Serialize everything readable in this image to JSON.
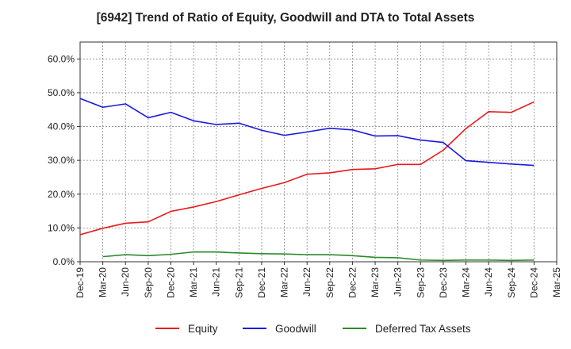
{
  "chart_data": {
    "type": "line",
    "title": "[6942]  Trend of Ratio of Equity, Goodwill and DTA to Total Assets",
    "xlabel": "",
    "ylabel": "",
    "ylim": [
      0,
      65
    ],
    "y_ticks": [
      0,
      10,
      20,
      30,
      40,
      50,
      60
    ],
    "y_tick_labels": [
      "0.0%",
      "10.0%",
      "20.0%",
      "30.0%",
      "40.0%",
      "50.0%",
      "60.0%"
    ],
    "x_tick_labels": [
      "Dec-19",
      "Mar-20",
      "Jun-20",
      "Sep-20",
      "Dec-20",
      "Mar-21",
      "Jun-21",
      "Sep-21",
      "Dec-21",
      "Mar-22",
      "Jun-22",
      "Sep-22",
      "Dec-22",
      "Mar-23",
      "Jun-23",
      "Sep-23",
      "Dec-23",
      "Mar-24",
      "Jun-24",
      "Sep-24",
      "Dec-24",
      "Mar-25"
    ],
    "grid": true,
    "legend_position": "bottom",
    "series": [
      {
        "name": "Equity",
        "color": "#e8191c",
        "values": [
          8.0,
          9.9,
          11.4,
          11.8,
          14.9,
          16.2,
          17.8,
          19.8,
          21.7,
          23.4,
          25.9,
          26.3,
          27.3,
          27.5,
          28.8,
          28.8,
          33.0,
          39.4,
          44.4,
          44.2,
          47.3,
          null
        ]
      },
      {
        "name": "Goodwill",
        "color": "#1a1adf",
        "values": [
          48.3,
          45.7,
          46.7,
          42.6,
          44.2,
          41.7,
          40.6,
          41.0,
          38.9,
          37.4,
          38.4,
          39.5,
          39.0,
          37.2,
          37.3,
          36.0,
          35.3,
          29.9,
          29.4,
          28.9,
          28.5,
          null
        ]
      },
      {
        "name": "Deferred Tax Assets",
        "color": "#2a8c2a",
        "values": [
          null,
          1.5,
          2.1,
          1.8,
          2.2,
          2.9,
          2.9,
          2.6,
          2.4,
          2.3,
          2.1,
          2.1,
          1.8,
          1.3,
          1.2,
          0.5,
          0.4,
          0.5,
          0.5,
          0.4,
          0.5,
          null
        ]
      }
    ]
  }
}
